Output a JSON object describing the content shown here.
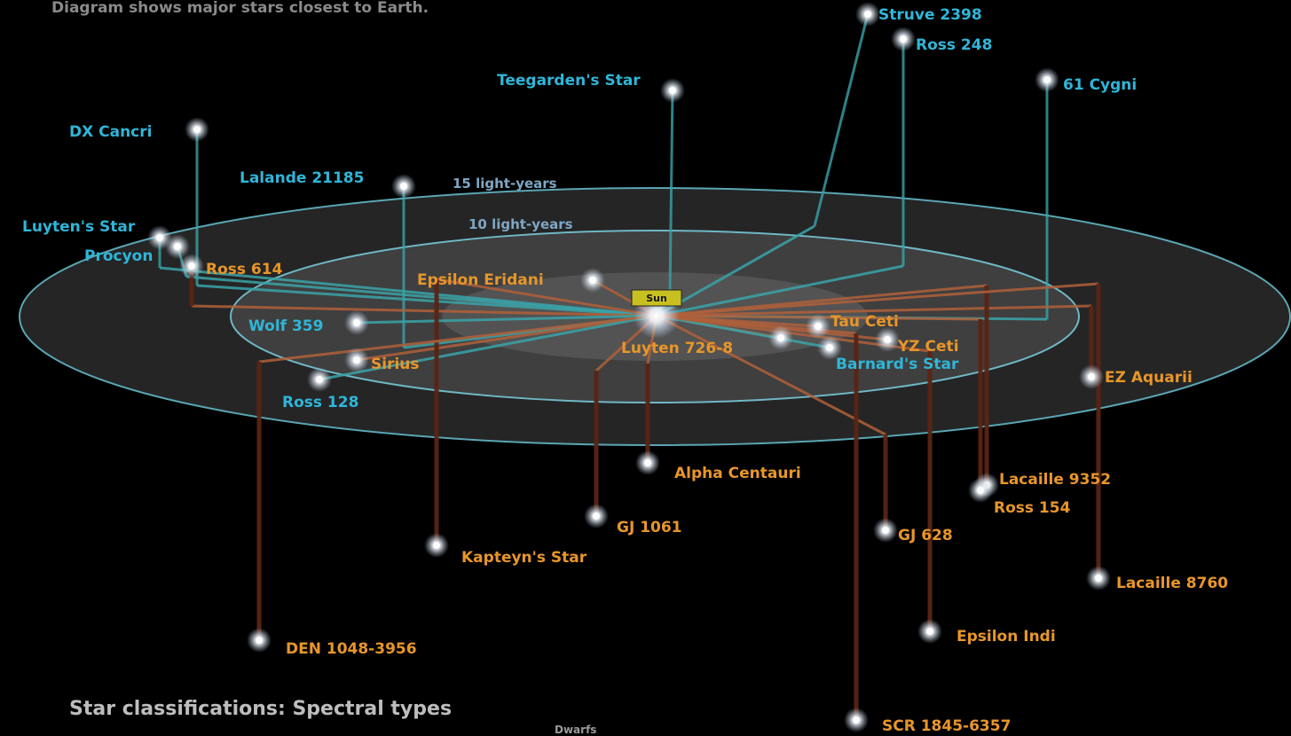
{
  "header": {
    "top_caption": "Diagram shows major stars closest to Earth."
  },
  "rings": {
    "outer_label": "15 light-years",
    "inner_label": "10 light-years"
  },
  "sun": {
    "label": "Sun"
  },
  "colors": {
    "north": "#2fb6d8",
    "south": "#e8962a",
    "north_line": "#3aa3a8",
    "south_line": "#b0603a",
    "drop_line": "#5a2414"
  },
  "stars": [
    {
      "name": "Teegarden's Star",
      "side": "north"
    },
    {
      "name": "DX Cancri",
      "side": "north"
    },
    {
      "name": "Lalande 21185",
      "side": "north"
    },
    {
      "name": "Luyten's Star",
      "side": "north"
    },
    {
      "name": "Procyon",
      "side": "north"
    },
    {
      "name": "Ross 614",
      "side": "south"
    },
    {
      "name": "Epsilon Eridani",
      "side": "south"
    },
    {
      "name": "Wolf 359",
      "side": "north"
    },
    {
      "name": "Sirius",
      "side": "south"
    },
    {
      "name": "Ross 128",
      "side": "north"
    },
    {
      "name": "Luyten 726-8",
      "side": "south"
    },
    {
      "name": "Struve 2398",
      "side": "north"
    },
    {
      "name": "Ross 248",
      "side": "north"
    },
    {
      "name": "61 Cygni",
      "side": "north"
    },
    {
      "name": "Tau Ceti",
      "side": "south"
    },
    {
      "name": "YZ Ceti",
      "side": "south"
    },
    {
      "name": "Barnard's Star",
      "side": "north"
    },
    {
      "name": "EZ Aquarii",
      "side": "south"
    },
    {
      "name": "Alpha Centauri",
      "side": "south"
    },
    {
      "name": "Lacaille 9352",
      "side": "south"
    },
    {
      "name": "Ross 154",
      "side": "south"
    },
    {
      "name": "GJ 1061",
      "side": "south"
    },
    {
      "name": "Kapteyn's Star",
      "side": "south"
    },
    {
      "name": "GJ 628",
      "side": "south"
    },
    {
      "name": "Lacaille 8760",
      "side": "south"
    },
    {
      "name": "DEN 1048-3956",
      "side": "south"
    },
    {
      "name": "Epsilon Indi",
      "side": "south"
    },
    {
      "name": "SCR 1845-6357",
      "side": "south"
    }
  ],
  "footer": {
    "caption": "Star classifications: Spectral types",
    "sub_caption": "Dwarfs"
  }
}
